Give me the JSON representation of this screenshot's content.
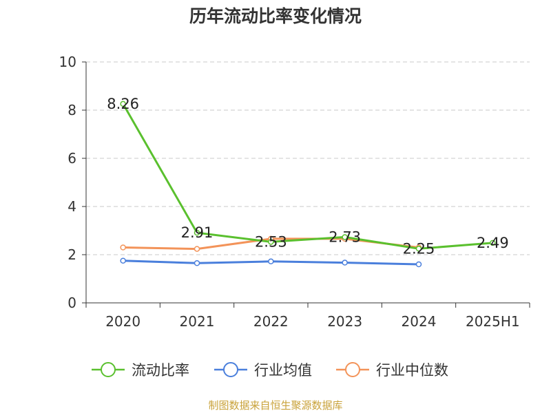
{
  "chart_data": {
    "type": "line",
    "title": "历年流动比率变化情况",
    "categories": [
      "2020",
      "2021",
      "2022",
      "2023",
      "2024",
      "2025H1"
    ],
    "ylim": [
      0,
      10
    ],
    "yticks": [
      "0",
      "2",
      "4",
      "6",
      "8",
      "10"
    ],
    "grid": true,
    "legend_position": "bottom",
    "series": [
      {
        "name": "流动比率",
        "color": "#5ac02e",
        "values": [
          8.26,
          2.91,
          2.53,
          2.73,
          2.25,
          2.49
        ],
        "labels": [
          "8.26",
          "2.91",
          "2.53",
          "2.73",
          "2.25",
          "2.49"
        ]
      },
      {
        "name": "行业均值",
        "color": "#4a7fdc",
        "values": [
          1.75,
          1.65,
          1.72,
          1.67,
          1.6,
          null
        ]
      },
      {
        "name": "行业中位数",
        "color": "#f39359",
        "values": [
          2.3,
          2.24,
          2.66,
          2.66,
          2.3,
          null
        ]
      }
    ]
  },
  "footer": {
    "source": "制图数据来自恒生聚源数据库"
  }
}
